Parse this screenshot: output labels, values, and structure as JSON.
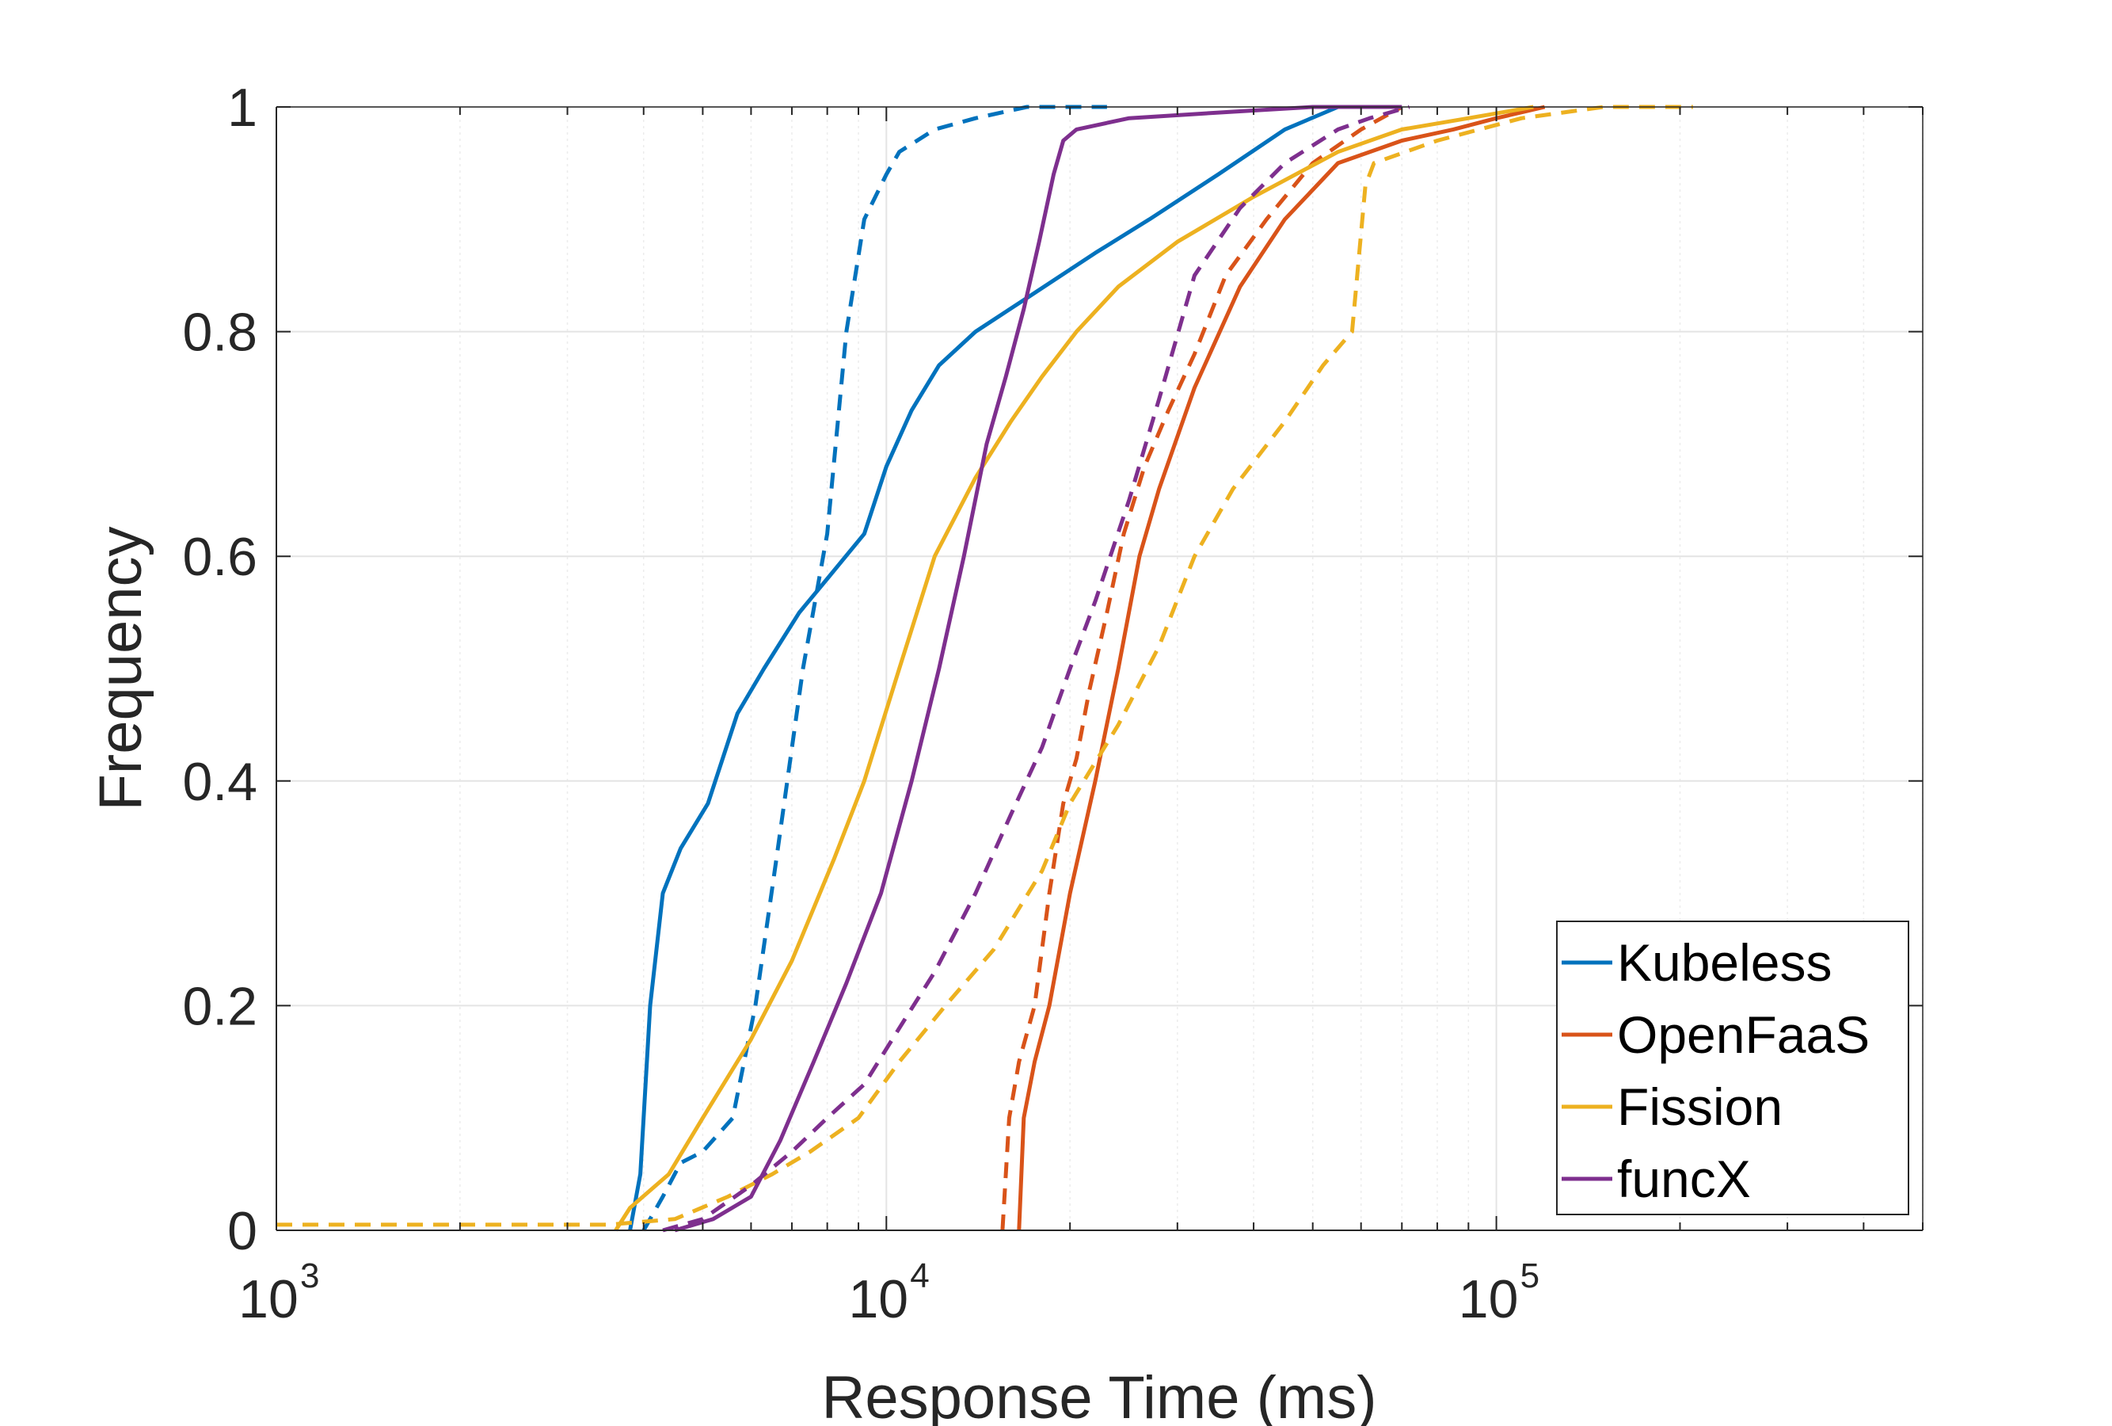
{
  "chart_data": {
    "type": "line",
    "title": "",
    "xlabel": "Response Time (ms)",
    "ylabel": "Frequency",
    "xscale": "log",
    "xlim": [
      1000,
      500000
    ],
    "ylim": [
      0,
      1
    ],
    "grid": true,
    "x_ticks": [
      {
        "base": "10",
        "exp": "3",
        "value": 1000
      },
      {
        "base": "10",
        "exp": "4",
        "value": 10000
      },
      {
        "base": "10",
        "exp": "5",
        "value": 100000
      }
    ],
    "y_ticks": [
      "0",
      "0.2",
      "0.4",
      "0.6",
      "0.8",
      "1"
    ],
    "legend": {
      "position": "bottom-right",
      "entries": [
        "Kubeless",
        "OpenFaaS",
        "Fission",
        "funcX"
      ]
    },
    "series": [
      {
        "name": "Kubeless",
        "style": "solid",
        "color": "#0072BD",
        "x": [
          3800,
          3950,
          4100,
          4300,
          4600,
          5100,
          5700,
          6300,
          7200,
          8000,
          9200,
          10000,
          11000,
          12200,
          14000,
          17000,
          22000,
          27000,
          35000,
          45000,
          55000,
          65000
        ],
        "y": [
          0,
          0.05,
          0.2,
          0.3,
          0.34,
          0.38,
          0.46,
          0.5,
          0.55,
          0.58,
          0.62,
          0.68,
          0.73,
          0.77,
          0.8,
          0.83,
          0.87,
          0.9,
          0.94,
          0.98,
          1,
          1
        ]
      },
      {
        "name": "Kubeless (dashed)",
        "style": "dashed",
        "color": "#0072BD",
        "x": [
          4000,
          4300,
          4600,
          5000,
          5600,
          6100,
          6600,
          7300,
          8000,
          8600,
          9200,
          10000,
          10500,
          12000,
          14000,
          17000,
          23000
        ],
        "y": [
          0,
          0.03,
          0.06,
          0.07,
          0.1,
          0.2,
          0.33,
          0.5,
          0.62,
          0.8,
          0.9,
          0.94,
          0.96,
          0.98,
          0.99,
          1,
          1
        ]
      },
      {
        "name": "OpenFaaS",
        "style": "solid",
        "color": "#D95319",
        "x": [
          16500,
          16800,
          17500,
          18500,
          20000,
          22000,
          24000,
          26000,
          28000,
          32000,
          38000,
          45000,
          55000,
          70000,
          85000,
          100000,
          120000
        ],
        "y": [
          0,
          0.1,
          0.15,
          0.2,
          0.3,
          0.4,
          0.5,
          0.6,
          0.66,
          0.75,
          0.84,
          0.9,
          0.95,
          0.97,
          0.98,
          0.99,
          1
        ]
      },
      {
        "name": "OpenFaaS (dashed)",
        "style": "dashed",
        "color": "#D95319",
        "x": [
          15500,
          15900,
          16500,
          17500,
          18500,
          19500,
          20500,
          21500,
          23000,
          24500,
          26500,
          29000,
          32000,
          36000,
          42000,
          50000,
          60000,
          70000
        ],
        "y": [
          0,
          0.1,
          0.15,
          0.2,
          0.3,
          0.38,
          0.42,
          0.48,
          0.55,
          0.62,
          0.68,
          0.73,
          0.78,
          0.85,
          0.9,
          0.95,
          0.98,
          1
        ]
      },
      {
        "name": "Fission",
        "style": "solid",
        "color": "#EDB120",
        "x": [
          3600,
          3800,
          4400,
          5000,
          6000,
          7000,
          8200,
          9200,
          10500,
          12000,
          14000,
          16000,
          18000,
          20500,
          24000,
          30000,
          40000,
          55000,
          70000,
          90000,
          115000
        ],
        "y": [
          0,
          0.02,
          0.05,
          0.1,
          0.17,
          0.24,
          0.33,
          0.4,
          0.5,
          0.6,
          0.67,
          0.72,
          0.76,
          0.8,
          0.84,
          0.88,
          0.92,
          0.96,
          0.98,
          0.99,
          1
        ]
      },
      {
        "name": "Fission (dashed)",
        "style": "dashed",
        "color": "#EDB120",
        "x": [
          1000,
          3500,
          4500,
          5500,
          6500,
          7500,
          9000,
          10500,
          12500,
          15000,
          18000,
          20000,
          24000,
          28000,
          32000,
          37000,
          45000,
          52000,
          58000,
          61000,
          63000,
          80000,
          110000,
          150000,
          210000
        ],
        "y": [
          0.005,
          0.005,
          0.01,
          0.03,
          0.05,
          0.07,
          0.1,
          0.15,
          0.2,
          0.25,
          0.32,
          0.38,
          0.45,
          0.52,
          0.6,
          0.66,
          0.72,
          0.77,
          0.8,
          0.93,
          0.95,
          0.97,
          0.99,
          1,
          1
        ]
      },
      {
        "name": "funcX",
        "style": "solid",
        "color": "#7E2F8E",
        "x": [
          4500,
          5200,
          6000,
          6700,
          7600,
          8600,
          9800,
          11000,
          12200,
          13400,
          14600,
          15700,
          16800,
          17800,
          18800,
          19500,
          20500,
          25000,
          35000,
          50000,
          70000
        ],
        "y": [
          0,
          0.01,
          0.03,
          0.08,
          0.15,
          0.22,
          0.3,
          0.4,
          0.5,
          0.6,
          0.7,
          0.76,
          0.82,
          0.88,
          0.94,
          0.97,
          0.98,
          0.99,
          0.995,
          1,
          1
        ]
      },
      {
        "name": "funcX (dashed)",
        "style": "dashed",
        "color": "#7E2F8E",
        "x": [
          4300,
          5000,
          6000,
          7000,
          8000,
          9200,
          10500,
          12000,
          14000,
          16000,
          18000,
          20000,
          22000,
          25000,
          28000,
          32000,
          38000,
          45000,
          55000,
          62000,
          72000
        ],
        "y": [
          0,
          0.01,
          0.04,
          0.07,
          0.1,
          0.13,
          0.18,
          0.23,
          0.3,
          0.37,
          0.43,
          0.5,
          0.56,
          0.65,
          0.74,
          0.85,
          0.91,
          0.95,
          0.98,
          0.99,
          1
        ]
      }
    ]
  }
}
